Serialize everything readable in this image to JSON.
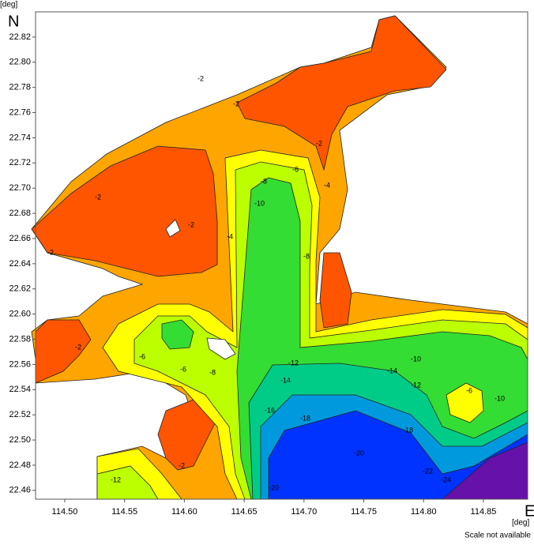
{
  "chart_data": {
    "type": "contour",
    "y_unit": "[deg]",
    "x_unit": "[deg]",
    "north": "N",
    "east": "E",
    "note": "Scale not available",
    "xlim": [
      114.4756,
      114.887
    ],
    "ylim": [
      22.453,
      22.84
    ],
    "xticks": [
      {
        "value": 114.5,
        "label": "114.50"
      },
      114.55,
      {
        "value": 114.6,
        "label": "114.60"
      },
      114.65,
      {
        "value": 114.7,
        "label": "114.70"
      },
      114.75,
      {
        "value": 114.8,
        "label": "114.80"
      },
      114.85
    ],
    "yticks": [
      22.46,
      22.48,
      {
        "value": 22.5,
        "label": "22.50"
      },
      22.52,
      22.54,
      22.56,
      22.58,
      {
        "value": 22.6,
        "label": "22.60"
      },
      22.62,
      22.64,
      22.66,
      22.68,
      {
        "value": 22.7,
        "label": "22.70"
      },
      22.72,
      22.74,
      22.76,
      22.78,
      {
        "value": 22.8,
        "label": "22.80"
      },
      22.82
    ],
    "contour_labels": [
      -2,
      -2,
      -2,
      -2,
      -2,
      -2,
      -2,
      -4,
      -6,
      -8,
      -10,
      -8,
      -6,
      -4,
      -6,
      -8,
      -12,
      -14,
      -16,
      -18,
      -20,
      -18,
      -10,
      -12,
      -14,
      -6,
      -10,
      -22,
      -24,
      -12,
      -2,
      -20
    ]
  }
}
